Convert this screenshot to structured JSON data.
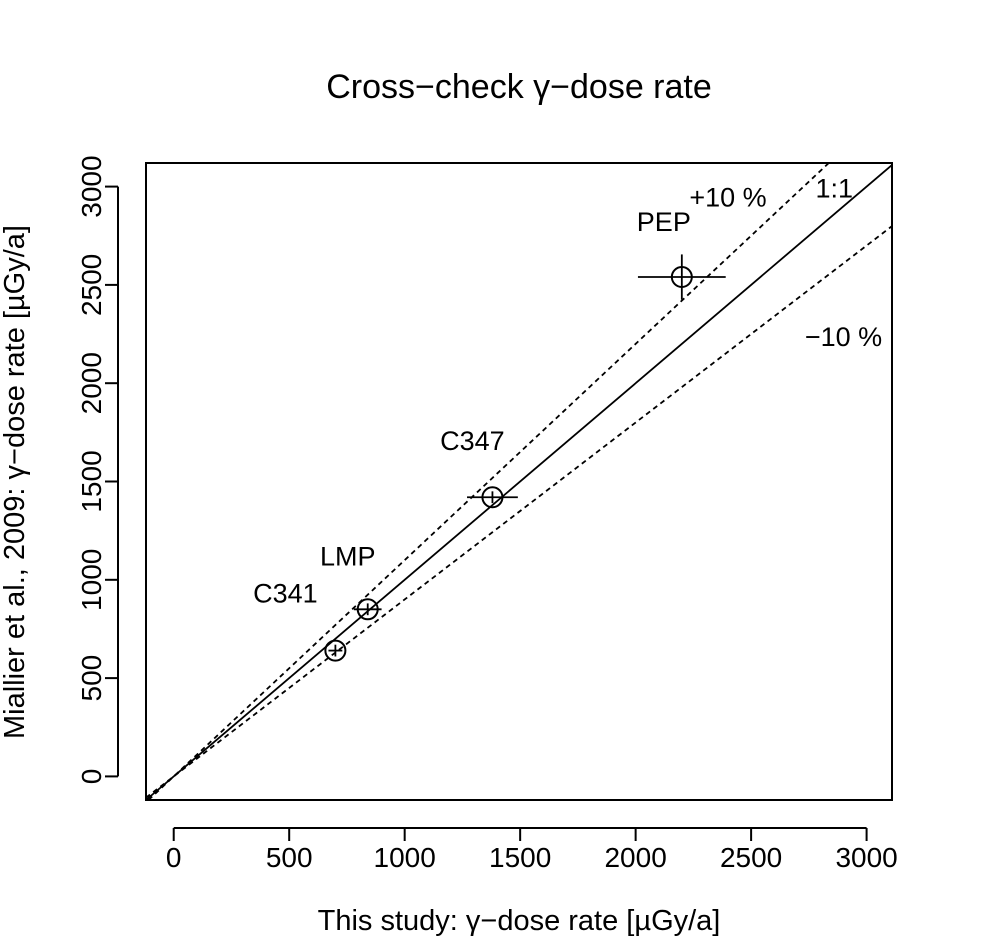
{
  "chart_data": {
    "type": "scatter",
    "title": "Cross−check γ−dose rate",
    "xlabel": "This study: γ−dose rate [µGy/a]",
    "ylabel": "Miallier et al., 2009: γ−dose rate [µGy/a]",
    "xlim": [
      -120,
      3110
    ],
    "ylim": [
      -120,
      3120
    ],
    "x_ticks": [
      0,
      500,
      1000,
      1500,
      2000,
      2500,
      3000
    ],
    "y_ticks": [
      0,
      500,
      1000,
      1500,
      2000,
      2500,
      3000
    ],
    "grid": false,
    "points": [
      {
        "label": "C341",
        "x": 700,
        "y": 640,
        "x_err": 30,
        "y_err": 30
      },
      {
        "label": "LMP",
        "x": 840,
        "y": 850,
        "x_err": 60,
        "y_err": 30
      },
      {
        "label": "C347",
        "x": 1380,
        "y": 1420,
        "x_err": 110,
        "y_err": 30
      },
      {
        "label": "PEP",
        "x": 2200,
        "y": 2540,
        "x_err": 190,
        "y_err": 115
      }
    ],
    "reference_lines": [
      {
        "label": "1:1",
        "slope": 1.0,
        "style": "solid"
      },
      {
        "label": "+10 %",
        "slope": 1.1,
        "style": "dashed"
      },
      {
        "label": "−10 %",
        "slope": 0.9,
        "style": "dashed"
      }
    ]
  }
}
